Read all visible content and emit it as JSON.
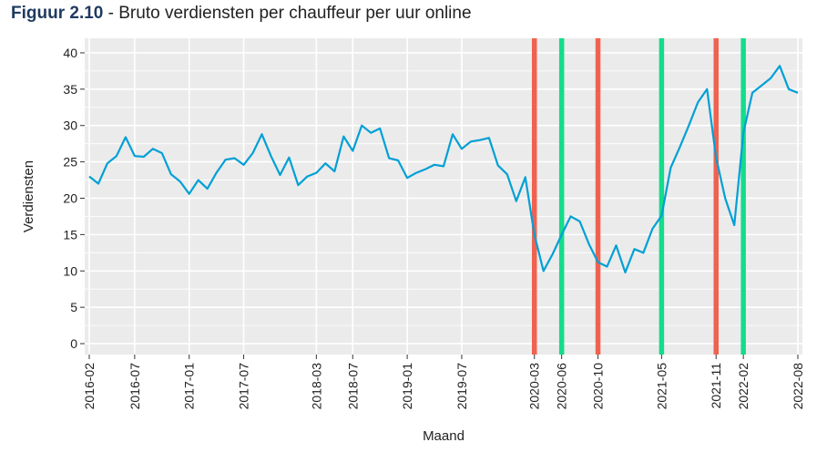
{
  "title": {
    "figure_label": "Figuur 2.10",
    "separator": " - ",
    "text": "Bruto verdiensten per chauffeur per uur online"
  },
  "colors": {
    "line": "#00a0d6",
    "red": "#f0624f",
    "green": "#13dc8b",
    "panel": "#ebebeb",
    "grid": "#ffffff"
  },
  "chart_data": {
    "type": "line",
    "title": "Bruto verdiensten per chauffeur per uur online",
    "xlabel": "Maand",
    "ylabel": "Verdiensten",
    "ylim": [
      -1.5,
      42
    ],
    "yticks": [
      0,
      5,
      10,
      15,
      20,
      25,
      30,
      35,
      40
    ],
    "x_start": "2016-02",
    "x_end": "2022-08",
    "xticks": [
      "2016-02",
      "2016-07",
      "2017-01",
      "2017-07",
      "2018-03",
      "2018-07",
      "2019-01",
      "2019-07",
      "2020-03",
      "2020-06",
      "2020-10",
      "2021-05",
      "2021-11",
      "2022-02",
      "2022-08"
    ],
    "series": [
      {
        "name": "Verdiensten",
        "x": [
          "2016-02",
          "2016-03",
          "2016-04",
          "2016-05",
          "2016-06",
          "2016-07",
          "2016-08",
          "2016-09",
          "2016-10",
          "2016-11",
          "2016-12",
          "2017-01",
          "2017-02",
          "2017-03",
          "2017-04",
          "2017-05",
          "2017-06",
          "2017-07",
          "2017-08",
          "2017-09",
          "2017-10",
          "2017-11",
          "2017-12",
          "2018-01",
          "2018-02",
          "2018-03",
          "2018-04",
          "2018-05",
          "2018-06",
          "2018-07",
          "2018-08",
          "2018-09",
          "2018-10",
          "2018-11",
          "2018-12",
          "2019-01",
          "2019-02",
          "2019-03",
          "2019-04",
          "2019-05",
          "2019-06",
          "2019-07",
          "2019-08",
          "2019-09",
          "2019-10",
          "2019-11",
          "2019-12",
          "2020-01",
          "2020-02",
          "2020-03",
          "2020-04",
          "2020-05",
          "2020-06",
          "2020-07",
          "2020-08",
          "2020-09",
          "2020-10",
          "2020-11",
          "2020-12",
          "2021-01",
          "2021-02",
          "2021-03",
          "2021-04",
          "2021-05",
          "2021-06",
          "2021-07",
          "2021-08",
          "2021-09",
          "2021-10",
          "2021-11",
          "2021-12",
          "2022-01",
          "2022-02",
          "2022-03",
          "2022-04",
          "2022-05",
          "2022-06",
          "2022-07",
          "2022-08"
        ],
        "values": [
          23,
          22,
          24.8,
          25.8,
          28.4,
          25.8,
          25.7,
          26.8,
          26.2,
          23.3,
          22.3,
          20.6,
          22.5,
          21.3,
          23.5,
          25.3,
          25.5,
          24.6,
          26.2,
          28.8,
          25.8,
          23.2,
          25.6,
          21.8,
          23,
          23.5,
          24.8,
          23.7,
          28.5,
          26.5,
          30,
          29,
          29.6,
          25.5,
          25.2,
          22.8,
          23.5,
          24,
          24.6,
          24.4,
          28.8,
          26.8,
          27.8,
          28,
          28.3,
          24.5,
          23.3,
          19.6,
          22.9,
          15,
          10,
          12.3,
          15,
          17.5,
          16.8,
          13.7,
          11.2,
          10.6,
          13.5,
          9.8,
          13,
          12.5,
          15.8,
          17.6,
          24.2,
          27,
          30,
          33.2,
          35,
          25.6,
          20,
          16.3,
          29,
          34.5,
          35.5,
          36.5,
          38.2,
          35,
          34.5
        ]
      }
    ],
    "vertical_lines": [
      {
        "x": "2020-03",
        "color": "red"
      },
      {
        "x": "2020-06",
        "color": "green"
      },
      {
        "x": "2020-10",
        "color": "red"
      },
      {
        "x": "2021-05",
        "color": "green"
      },
      {
        "x": "2021-11",
        "color": "red"
      },
      {
        "x": "2022-02",
        "color": "green"
      }
    ]
  }
}
